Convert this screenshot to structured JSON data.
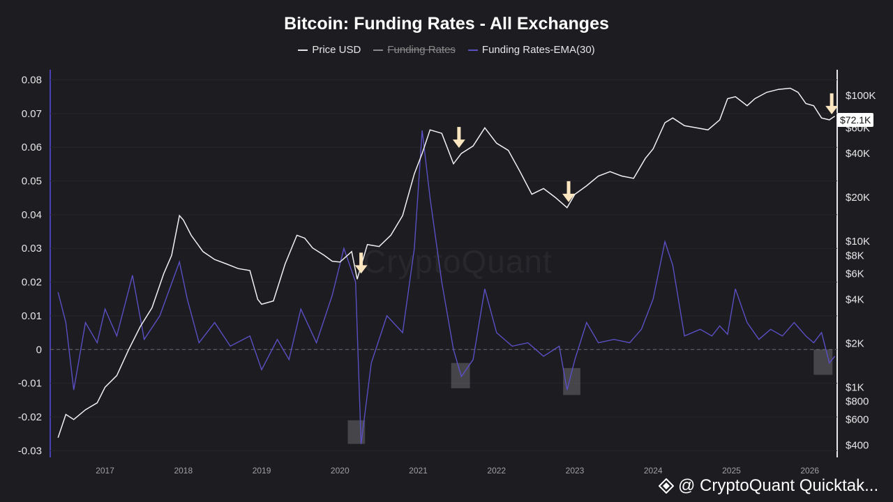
{
  "chart_data": {
    "type": "line",
    "title": "Bitcoin: Funding Rates - All Exchanges",
    "legend": [
      {
        "name": "Price USD",
        "hidden": false,
        "color": "#e6e6e6"
      },
      {
        "name": "Funding Rates",
        "hidden": true,
        "color": "#8a8a8a"
      },
      {
        "name": "Funding Rates-EMA(30)",
        "hidden": false,
        "color": "#5b4fc4"
      }
    ],
    "x_ticks": [
      "2017",
      "2018",
      "2019",
      "2020",
      "2021",
      "2022",
      "2023",
      "2024",
      "2025",
      "2026"
    ],
    "x_tick_values": [
      2017,
      2018,
      2019,
      2020,
      2021,
      2022,
      2023,
      2024,
      2025,
      2026
    ],
    "xlim": [
      2016.3,
      2026.35
    ],
    "y_left_ticks": [
      "0.08",
      "0.07",
      "0.06",
      "0.05",
      "0.04",
      "0.03",
      "0.02",
      "0.01",
      "0",
      "-0.01",
      "-0.02",
      "-0.03"
    ],
    "y_left_values": [
      0.08,
      0.07,
      0.06,
      0.05,
      0.04,
      0.03,
      0.02,
      0.01,
      0,
      -0.01,
      -0.02,
      -0.03
    ],
    "ylim_left": [
      -0.032,
      0.083
    ],
    "y_right_ticks": [
      "$100K",
      "$60K",
      "$40K",
      "$20K",
      "$10K",
      "$8K",
      "$6K",
      "$4K",
      "$2K",
      "$1K",
      "$800",
      "$600",
      "$400"
    ],
    "y_right_values": [
      100000,
      60000,
      40000,
      20000,
      10000,
      8000,
      6000,
      4000,
      2000,
      1000,
      800,
      600,
      400
    ],
    "ylim_right_log": [
      330,
      150000
    ],
    "current_price_label": "$72.1K",
    "series": [
      {
        "name": "Price USD",
        "x": [
          2016.4,
          2016.5,
          2016.6,
          2016.75,
          2016.9,
          2017.0,
          2017.15,
          2017.3,
          2017.45,
          2017.6,
          2017.75,
          2017.85,
          2017.95,
          2018.0,
          2018.1,
          2018.25,
          2018.4,
          2018.55,
          2018.7,
          2018.85,
          2018.95,
          2019.0,
          2019.15,
          2019.3,
          2019.45,
          2019.55,
          2019.65,
          2019.8,
          2019.9,
          2020.0,
          2020.15,
          2020.22,
          2020.35,
          2020.5,
          2020.65,
          2020.8,
          2020.95,
          2021.05,
          2021.15,
          2021.3,
          2021.45,
          2021.55,
          2021.7,
          2021.85,
          2022.0,
          2022.15,
          2022.3,
          2022.45,
          2022.6,
          2022.75,
          2022.9,
          2023.0,
          2023.15,
          2023.3,
          2023.45,
          2023.6,
          2023.75,
          2023.9,
          2024.0,
          2024.15,
          2024.25,
          2024.4,
          2024.55,
          2024.7,
          2024.85,
          2024.95,
          2025.05,
          2025.2,
          2025.3,
          2025.45,
          2025.6,
          2025.75,
          2025.85,
          2025.95,
          2026.05,
          2026.15,
          2026.25,
          2026.32
        ],
        "values": [
          450,
          650,
          600,
          700,
          780,
          1000,
          1200,
          1800,
          2600,
          3500,
          6000,
          8000,
          15000,
          14000,
          11000,
          8500,
          7500,
          7000,
          6500,
          6300,
          4000,
          3700,
          3900,
          7000,
          11000,
          10500,
          9000,
          8000,
          7300,
          7200,
          8500,
          5500,
          9500,
          9200,
          11000,
          15000,
          29000,
          40000,
          58000,
          55000,
          34000,
          40000,
          45000,
          60000,
          47000,
          42000,
          30000,
          21000,
          23000,
          20000,
          17000,
          21000,
          24000,
          28000,
          30000,
          28000,
          27000,
          37000,
          43000,
          65000,
          70000,
          62000,
          60000,
          58000,
          68000,
          95000,
          98000,
          85000,
          95000,
          105000,
          110000,
          112000,
          105000,
          88000,
          85000,
          70000,
          68000,
          72100
        ]
      },
      {
        "name": "Funding Rates-EMA(30)",
        "x": [
          2016.4,
          2016.5,
          2016.6,
          2016.75,
          2016.9,
          2017.0,
          2017.15,
          2017.35,
          2017.5,
          2017.7,
          2017.95,
          2018.05,
          2018.2,
          2018.4,
          2018.6,
          2018.85,
          2019.0,
          2019.2,
          2019.35,
          2019.5,
          2019.7,
          2019.9,
          2020.05,
          2020.2,
          2020.27,
          2020.4,
          2020.6,
          2020.8,
          2020.95,
          2021.05,
          2021.15,
          2021.3,
          2021.45,
          2021.55,
          2021.7,
          2021.85,
          2022.0,
          2022.2,
          2022.4,
          2022.6,
          2022.8,
          2022.9,
          2023.0,
          2023.15,
          2023.3,
          2023.5,
          2023.7,
          2023.85,
          2024.0,
          2024.15,
          2024.25,
          2024.4,
          2024.6,
          2024.75,
          2024.85,
          2024.95,
          2025.05,
          2025.2,
          2025.35,
          2025.5,
          2025.65,
          2025.8,
          2025.95,
          2026.05,
          2026.15,
          2026.25,
          2026.32
        ],
        "values": [
          0.017,
          0.008,
          -0.012,
          0.008,
          0.002,
          0.012,
          0.004,
          0.022,
          0.003,
          0.01,
          0.026,
          0.015,
          0.002,
          0.008,
          0.001,
          0.004,
          -0.006,
          0.003,
          -0.003,
          0.012,
          0.002,
          0.016,
          0.03,
          0.02,
          -0.028,
          -0.004,
          0.01,
          0.005,
          0.03,
          0.065,
          0.045,
          0.02,
          0.0,
          -0.008,
          -0.003,
          0.018,
          0.005,
          0.001,
          0.002,
          -0.002,
          0.001,
          -0.012,
          -0.003,
          0.008,
          0.002,
          0.003,
          0.002,
          0.006,
          0.015,
          0.032,
          0.025,
          0.004,
          0.006,
          0.004,
          0.007,
          0.0045,
          0.018,
          0.008,
          0.003,
          0.006,
          0.004,
          0.008,
          0.004,
          0.002,
          0.005,
          -0.004,
          -0.002
        ]
      }
    ],
    "annotations": {
      "arrows_x": [
        2020.27,
        2021.52,
        2022.92,
        2026.28
      ],
      "highlight_boxes": [
        {
          "x0": 2020.1,
          "x1": 2020.32,
          "y0": -0.028,
          "y1": -0.021
        },
        {
          "x0": 2021.42,
          "x1": 2021.66,
          "y0": -0.0115,
          "y1": -0.004
        },
        {
          "x0": 2022.85,
          "x1": 2023.07,
          "y0": -0.0135,
          "y1": -0.0055
        },
        {
          "x0": 2026.05,
          "x1": 2026.29,
          "y0": -0.0075,
          "y1": 0.0
        }
      ]
    }
  },
  "watermark": "CryptoQuant",
  "footer_text": "@ CryptoQuant Quicktak..."
}
